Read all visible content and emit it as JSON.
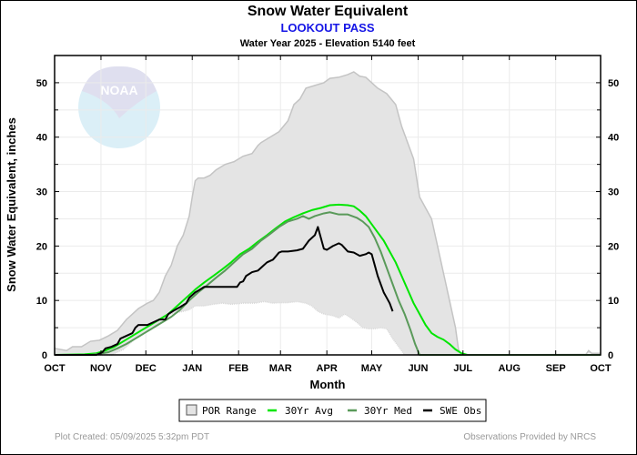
{
  "chart_data": {
    "type": "area",
    "title": "Snow Water Equivalent",
    "subtitle": "LOOKOUT PASS",
    "subsubtitle": "Water Year 2025 -  Elevation 5140 feet",
    "xlabel": "Month",
    "ylabel": "Snow Water Equivalent, inches",
    "ylim": [
      0,
      55
    ],
    "xlim_days": [
      0,
      365
    ],
    "yticks": [
      0,
      10,
      20,
      30,
      40,
      50
    ],
    "yticks_minor": [
      5,
      15,
      25,
      35,
      45
    ],
    "month_ticks": [
      {
        "label": "OCT",
        "day": 0
      },
      {
        "label": "NOV",
        "day": 31
      },
      {
        "label": "DEC",
        "day": 61
      },
      {
        "label": "JAN",
        "day": 92
      },
      {
        "label": "FEB",
        "day": 123
      },
      {
        "label": "MAR",
        "day": 151
      },
      {
        "label": "APR",
        "day": 182
      },
      {
        "label": "MAY",
        "day": 212
      },
      {
        "label": "JUN",
        "day": 243
      },
      {
        "label": "JUL",
        "day": 273
      },
      {
        "label": "AUG",
        "day": 304
      },
      {
        "label": "SEP",
        "day": 335
      },
      {
        "label": "OCT",
        "day": 365
      }
    ],
    "grid": true,
    "legend_position": "bottom",
    "watermark": "NOAA",
    "series": [
      {
        "name": "POR Range",
        "kind": "band",
        "color": "#e4e4e4",
        "edge_color": "#c4c4c4",
        "max": [
          [
            0,
            1.2
          ],
          [
            8,
            0.8
          ],
          [
            12,
            1.5
          ],
          [
            18,
            1.5
          ],
          [
            24,
            2.5
          ],
          [
            30,
            2.7
          ],
          [
            36,
            3.5
          ],
          [
            42,
            4.5
          ],
          [
            48,
            6.5
          ],
          [
            52,
            7.5
          ],
          [
            56,
            8.5
          ],
          [
            62,
            9.5
          ],
          [
            66,
            10
          ],
          [
            70,
            11.5
          ],
          [
            74,
            14.5
          ],
          [
            78,
            16.5
          ],
          [
            82,
            20
          ],
          [
            86,
            22
          ],
          [
            90,
            25.5
          ],
          [
            92,
            29
          ],
          [
            94,
            32
          ],
          [
            96,
            32.5
          ],
          [
            100,
            32.5
          ],
          [
            104,
            33
          ],
          [
            108,
            34
          ],
          [
            114,
            35
          ],
          [
            120,
            35.5
          ],
          [
            126,
            36.5
          ],
          [
            132,
            37
          ],
          [
            136,
            38.5
          ],
          [
            138,
            39
          ],
          [
            144,
            40
          ],
          [
            150,
            41
          ],
          [
            156,
            43
          ],
          [
            160,
            46
          ],
          [
            164,
            47
          ],
          [
            168,
            49
          ],
          [
            174,
            49.5
          ],
          [
            180,
            50
          ],
          [
            184,
            50.8
          ],
          [
            190,
            51
          ],
          [
            196,
            51.5
          ],
          [
            200,
            52
          ],
          [
            204,
            51.2
          ],
          [
            208,
            51
          ],
          [
            212,
            50
          ],
          [
            216,
            49
          ],
          [
            222,
            48
          ],
          [
            228,
            46
          ],
          [
            232,
            42
          ],
          [
            236,
            39
          ],
          [
            240,
            36
          ],
          [
            244,
            29
          ],
          [
            248,
            27
          ],
          [
            252,
            25
          ],
          [
            256,
            20
          ],
          [
            260,
            15
          ],
          [
            264,
            10
          ],
          [
            268,
            5
          ],
          [
            270,
            1
          ],
          [
            272,
            0
          ],
          [
            355,
            0
          ],
          [
            357,
            0.8
          ],
          [
            359,
            0.3
          ],
          [
            365,
            0.3
          ]
        ],
        "min": [
          [
            0,
            0
          ],
          [
            38,
            0
          ],
          [
            42,
            0.5
          ],
          [
            46,
            1
          ],
          [
            50,
            2
          ],
          [
            54,
            3
          ],
          [
            58,
            3.5
          ],
          [
            62,
            4.5
          ],
          [
            66,
            5
          ],
          [
            70,
            6
          ],
          [
            74,
            7
          ],
          [
            78,
            7.5
          ],
          [
            82,
            7.8
          ],
          [
            86,
            8
          ],
          [
            90,
            8.3
          ],
          [
            94,
            9
          ],
          [
            100,
            9
          ],
          [
            106,
            9.3
          ],
          [
            112,
            9.5
          ],
          [
            118,
            9.3
          ],
          [
            126,
            9.5
          ],
          [
            134,
            9.5
          ],
          [
            140,
            9.8
          ],
          [
            146,
            9.5
          ],
          [
            150,
            9.6
          ],
          [
            156,
            9.6
          ],
          [
            162,
            9.8
          ],
          [
            168,
            9.5
          ],
          [
            172,
            9
          ],
          [
            176,
            8
          ],
          [
            180,
            7.5
          ],
          [
            186,
            7.2
          ],
          [
            190,
            6.8
          ],
          [
            194,
            7.5
          ],
          [
            198,
            6.8
          ],
          [
            202,
            6
          ],
          [
            206,
            5
          ],
          [
            210,
            4.8
          ],
          [
            214,
            4.8
          ],
          [
            218,
            5
          ],
          [
            222,
            4.8
          ],
          [
            226,
            3
          ],
          [
            230,
            1.5
          ],
          [
            234,
            0
          ]
        ]
      },
      {
        "name": "30Yr Avg",
        "kind": "line",
        "color": "#00e600",
        "points": [
          [
            0,
            0
          ],
          [
            20,
            0.1
          ],
          [
            28,
            0.3
          ],
          [
            34,
            0.8
          ],
          [
            40,
            1.5
          ],
          [
            46,
            2.5
          ],
          [
            52,
            3.5
          ],
          [
            58,
            4.5
          ],
          [
            64,
            5.5
          ],
          [
            70,
            6.5
          ],
          [
            76,
            7.5
          ],
          [
            82,
            9
          ],
          [
            88,
            10.5
          ],
          [
            94,
            12
          ],
          [
            100,
            13.3
          ],
          [
            106,
            14.5
          ],
          [
            112,
            15.7
          ],
          [
            118,
            17
          ],
          [
            124,
            18.5
          ],
          [
            130,
            19.5
          ],
          [
            136,
            20.8
          ],
          [
            142,
            22
          ],
          [
            148,
            23.3
          ],
          [
            154,
            24.5
          ],
          [
            160,
            25.3
          ],
          [
            166,
            26
          ],
          [
            172,
            26.6
          ],
          [
            178,
            27
          ],
          [
            184,
            27.5
          ],
          [
            190,
            27.6
          ],
          [
            196,
            27.5
          ],
          [
            200,
            27.3
          ],
          [
            204,
            26.5
          ],
          [
            208,
            25.5
          ],
          [
            212,
            24
          ],
          [
            216,
            22.5
          ],
          [
            220,
            21
          ],
          [
            224,
            19
          ],
          [
            228,
            17
          ],
          [
            232,
            14.5
          ],
          [
            236,
            12
          ],
          [
            240,
            9.5
          ],
          [
            244,
            7.5
          ],
          [
            248,
            5.5
          ],
          [
            252,
            4
          ],
          [
            256,
            3.3
          ],
          [
            260,
            2.8
          ],
          [
            264,
            2
          ],
          [
            268,
            1
          ],
          [
            272,
            0.3
          ],
          [
            276,
            0
          ],
          [
            365,
            0
          ]
        ]
      },
      {
        "name": "30Yr Med",
        "kind": "line",
        "color": "#5a9a5a",
        "points": [
          [
            0,
            0
          ],
          [
            24,
            0
          ],
          [
            30,
            0.2
          ],
          [
            36,
            0.5
          ],
          [
            42,
            1.2
          ],
          [
            48,
            2
          ],
          [
            54,
            3
          ],
          [
            60,
            4
          ],
          [
            66,
            5
          ],
          [
            72,
            6
          ],
          [
            78,
            7
          ],
          [
            84,
            8.3
          ],
          [
            90,
            10
          ],
          [
            96,
            11.5
          ],
          [
            102,
            12.8
          ],
          [
            108,
            14.2
          ],
          [
            114,
            15.5
          ],
          [
            120,
            17
          ],
          [
            126,
            18.5
          ],
          [
            132,
            19.5
          ],
          [
            138,
            21
          ],
          [
            144,
            22.2
          ],
          [
            150,
            23.5
          ],
          [
            156,
            24.5
          ],
          [
            162,
            25
          ],
          [
            166,
            25.5
          ],
          [
            170,
            25
          ],
          [
            174,
            25.5
          ],
          [
            180,
            26
          ],
          [
            184,
            26.2
          ],
          [
            190,
            25.8
          ],
          [
            196,
            25.8
          ],
          [
            202,
            25.2
          ],
          [
            206,
            24.5
          ],
          [
            210,
            23.5
          ],
          [
            214,
            21.5
          ],
          [
            218,
            19
          ],
          [
            222,
            16
          ],
          [
            226,
            13
          ],
          [
            230,
            10
          ],
          [
            234,
            7.5
          ],
          [
            238,
            4.5
          ],
          [
            241,
            2
          ],
          [
            244,
            0
          ],
          [
            365,
            0
          ]
        ]
      },
      {
        "name": "SWE Obs",
        "kind": "line",
        "color": "#000000",
        "points": [
          [
            0,
            0
          ],
          [
            28,
            0
          ],
          [
            32,
            0.5
          ],
          [
            34,
            1.2
          ],
          [
            38,
            1.5
          ],
          [
            42,
            2
          ],
          [
            44,
            3
          ],
          [
            48,
            3.5
          ],
          [
            52,
            4
          ],
          [
            54,
            5
          ],
          [
            56,
            5.5
          ],
          [
            62,
            5.5
          ],
          [
            66,
            6
          ],
          [
            70,
            6.5
          ],
          [
            74,
            6.5
          ],
          [
            76,
            7.5
          ],
          [
            80,
            8.2
          ],
          [
            84,
            8.8
          ],
          [
            88,
            9.5
          ],
          [
            90,
            10.5
          ],
          [
            94,
            11.5
          ],
          [
            96,
            11.8
          ],
          [
            100,
            12.5
          ],
          [
            104,
            12.5
          ],
          [
            110,
            12.5
          ],
          [
            118,
            12.5
          ],
          [
            122,
            12.5
          ],
          [
            124,
            13.3
          ],
          [
            126,
            13.5
          ],
          [
            128,
            14.5
          ],
          [
            132,
            15.2
          ],
          [
            136,
            15.5
          ],
          [
            140,
            16.5
          ],
          [
            142,
            17
          ],
          [
            146,
            17.5
          ],
          [
            150,
            18.8
          ],
          [
            152,
            19
          ],
          [
            156,
            19
          ],
          [
            162,
            19.2
          ],
          [
            166,
            19.5
          ],
          [
            170,
            21
          ],
          [
            172,
            21.5
          ],
          [
            174,
            22
          ],
          [
            176,
            23.5
          ],
          [
            178,
            21.5
          ],
          [
            180,
            19.5
          ],
          [
            182,
            19.3
          ],
          [
            186,
            20
          ],
          [
            190,
            20.5
          ],
          [
            192,
            20.2
          ],
          [
            196,
            19
          ],
          [
            200,
            18.8
          ],
          [
            204,
            18.2
          ],
          [
            208,
            18.5
          ],
          [
            210,
            18.8
          ],
          [
            212,
            18.5
          ],
          [
            214,
            16.5
          ],
          [
            216,
            14.5
          ],
          [
            218,
            13
          ],
          [
            220,
            11.5
          ],
          [
            222,
            10.5
          ],
          [
            224,
            9.5
          ],
          [
            226,
            8
          ]
        ]
      }
    ]
  },
  "legend": {
    "items": [
      {
        "label": "POR Range",
        "symbol": "box",
        "color": "#e4e4e4"
      },
      {
        "label": "30Yr Avg",
        "symbol": "line",
        "color": "#00e600"
      },
      {
        "label": "30Yr Med",
        "symbol": "line",
        "color": "#5a9a5a"
      },
      {
        "label": "SWE Obs",
        "symbol": "line",
        "color": "#000000"
      }
    ]
  },
  "footer": {
    "left": "Plot Created: 05/09/2025 5:32pm PDT",
    "right": "Observations Provided by NRCS"
  }
}
